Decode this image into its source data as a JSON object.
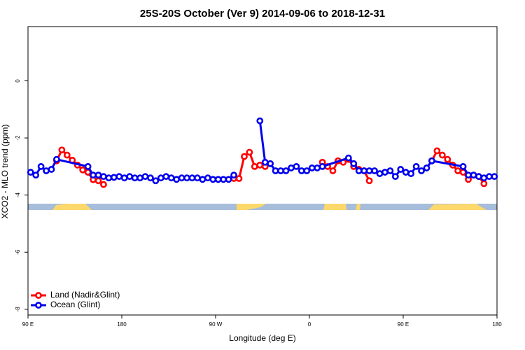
{
  "chart_data": {
    "type": "line",
    "title": "25S-20S October (Ver 9)   2014-09-06 to 2018-12-31",
    "x_label": "Longitude (deg E)",
    "y_label": "XCO2 - MLO trend (ppm)",
    "xlim": [
      90,
      540
    ],
    "ylim": [
      -8.2,
      1.9
    ],
    "xticks": [
      {
        "value": 90,
        "label": "90 E"
      },
      180,
      {
        "value": 270,
        "label": "90 W"
      },
      {
        "value": 360,
        "label": "0"
      },
      {
        "value": 450,
        "label": "90 E"
      },
      {
        "value": 540,
        "label": "180"
      }
    ],
    "yticks": [
      0,
      -2,
      -4,
      -6,
      -8
    ],
    "legend": "bottom-left",
    "series": [
      {
        "name": "Land (Nadir&Glint)",
        "color": "#ff0000",
        "x": [
          117.5,
          122.5,
          127.5,
          132.5,
          137.5,
          142.5,
          147.5,
          152.5,
          157.5,
          162.5,
          167.5,
          172.5,
          177.5,
          182.5,
          287.5,
          292.5,
          297.5,
          302.5,
          307.5,
          312.5,
          317.5,
          322.5,
          327.5,
          332.5,
          337.5,
          342.5,
          347.5,
          352.5,
          357.5,
          362.5,
          367.5,
          372.5,
          377.5,
          382.5,
          387.5,
          392.5,
          397.5,
          402.5,
          407.5,
          412.5,
          417.5,
          422.5,
          427.5,
          432.5,
          437.5,
          442.5,
          447.5,
          452.5,
          457.5,
          462.5,
          467.5,
          472.5,
          477.5,
          482.5,
          487.5,
          492.5,
          497.5,
          502.5,
          507.5,
          512.5,
          517.5,
          522.5,
          527.5
        ],
        "values": [
          -2.8,
          -2.42,
          -2.6,
          -2.78,
          -2.95,
          -3.12,
          -3.2,
          -3.46,
          -3.5,
          -3.63,
          null,
          null,
          null,
          null,
          -3.42,
          -3.42,
          -2.65,
          -2.5,
          -3.0,
          -2.95,
          -3.0,
          null,
          null,
          null,
          null,
          null,
          null,
          null,
          null,
          null,
          null,
          -2.85,
          -3.0,
          -3.15,
          -2.8,
          -2.85,
          -2.75,
          -3.0,
          -3.1,
          -3.15,
          -3.5,
          null,
          null,
          null,
          null,
          null,
          null,
          null,
          null,
          null,
          null,
          null,
          -2.8,
          -2.45,
          -2.6,
          -2.75,
          -2.95,
          -3.15,
          -3.2,
          -3.45,
          -3.3,
          -3.35,
          -3.6
        ]
      },
      {
        "name": "Ocean (Glint)",
        "color": "#0000ee",
        "x": [
          92.5,
          97.5,
          102.5,
          107.5,
          112.5,
          117.5,
          147.5,
          152.5,
          157.5,
          162.5,
          167.5,
          172.5,
          177.5,
          182.5,
          187.5,
          192.5,
          197.5,
          202.5,
          207.5,
          212.5,
          217.5,
          222.5,
          227.5,
          232.5,
          237.5,
          242.5,
          247.5,
          252.5,
          257.5,
          262.5,
          267.5,
          272.5,
          277.5,
          282.5,
          287.5,
          292.5,
          312.5,
          317.5,
          322.5,
          327.5,
          332.5,
          337.5,
          342.5,
          347.5,
          352.5,
          357.5,
          362.5,
          367.5,
          372.5,
          397.5,
          402.5,
          407.5,
          412.5,
          417.5,
          422.5,
          427.5,
          432.5,
          437.5,
          442.5,
          447.5,
          452.5,
          457.5,
          462.5,
          467.5,
          472.5,
          477.5,
          507.5,
          512.5,
          517.5,
          522.5,
          527.5,
          532.5,
          537.5
        ],
        "values": [
          -3.2,
          -3.3,
          -3.0,
          -3.15,
          -3.1,
          -2.75,
          -3.0,
          -3.3,
          -3.3,
          -3.35,
          -3.4,
          -3.38,
          -3.35,
          -3.4,
          -3.35,
          -3.4,
          -3.4,
          -3.35,
          -3.4,
          -3.5,
          -3.4,
          -3.35,
          -3.4,
          -3.45,
          -3.4,
          -3.4,
          -3.4,
          -3.4,
          -3.45,
          -3.4,
          -3.45,
          -3.45,
          -3.45,
          -3.45,
          -3.3,
          null,
          -1.4,
          -2.85,
          -2.9,
          -3.15,
          -3.15,
          -3.15,
          -3.05,
          -3.0,
          -3.15,
          -3.15,
          -3.05,
          -3.05,
          -3.0,
          -2.7,
          -2.9,
          -3.15,
          -3.15,
          -3.15,
          -3.15,
          -3.25,
          -3.2,
          -3.15,
          -3.35,
          -3.1,
          -3.2,
          -3.25,
          -3.0,
          -3.15,
          -3.05,
          -2.8,
          -3.0,
          -3.3,
          -3.3,
          -3.35,
          -3.4,
          -3.35,
          -3.35
        ]
      }
    ]
  }
}
